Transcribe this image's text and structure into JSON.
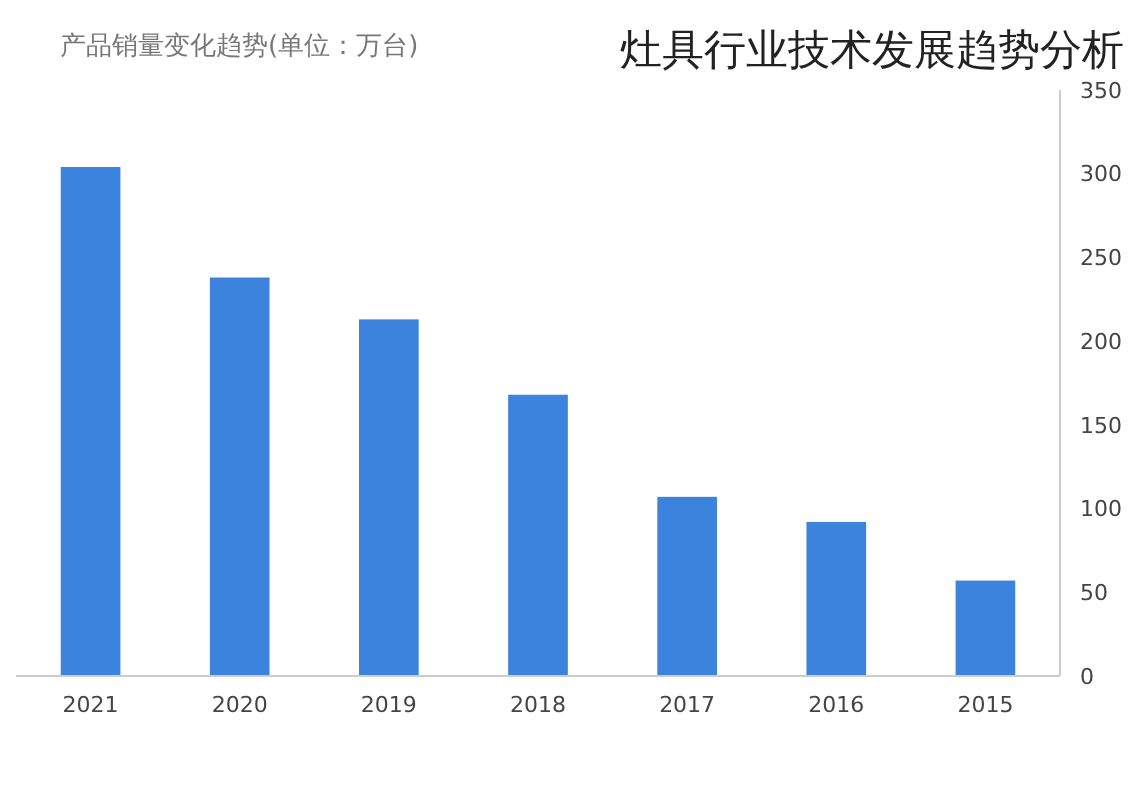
{
  "chart_data": {
    "type": "bar",
    "title": "灶具行业技术发展趋势分析",
    "subtitle": "产品销量变化趋势(单位：万台)",
    "categories": [
      "2021",
      "2020",
      "2019",
      "2018",
      "2017",
      "2016",
      "2015"
    ],
    "values": [
      304,
      238,
      213,
      168,
      107,
      92,
      57
    ],
    "color": "#3b83dc",
    "ylim": [
      0,
      350
    ],
    "yticks": [
      0,
      50,
      100,
      150,
      200,
      250,
      300,
      350
    ],
    "grid": false
  }
}
